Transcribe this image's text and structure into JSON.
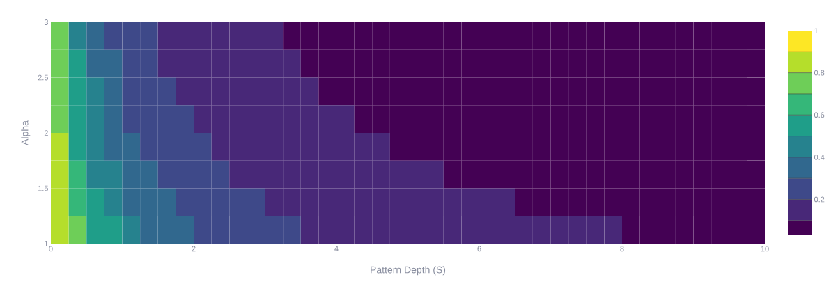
{
  "chart_data": {
    "type": "heatmap",
    "xlabel": "Pattern Depth (S)",
    "ylabel": "Alpha",
    "x": [
      0.125,
      0.375,
      0.625,
      0.875,
      1.125,
      1.375,
      1.625,
      1.875,
      2.125,
      2.375,
      2.625,
      2.875,
      3.125,
      3.375,
      3.625,
      3.875,
      4.125,
      4.375,
      4.625,
      4.875,
      5.125,
      5.375,
      5.625,
      5.875,
      6.125,
      6.375,
      6.625,
      6.875,
      7.125,
      7.375,
      7.625,
      7.875,
      8.125,
      8.375,
      8.625,
      8.875,
      9.125,
      9.375,
      9.625,
      9.875
    ],
    "xlim": [
      0,
      10
    ],
    "ylim": [
      1,
      3
    ],
    "xticks": [
      0,
      2,
      4,
      6,
      8,
      10
    ],
    "yticks": [
      1,
      1.5,
      2,
      2.5,
      3
    ],
    "cells": [
      [
        0.75,
        0.45,
        0.35,
        0.25,
        0.25,
        0.25,
        0.15,
        0.15,
        0.15,
        0.15,
        0.15,
        0.15,
        0.15,
        0.05,
        0.05,
        0.05,
        0.05,
        0.05,
        0.05,
        0.05,
        0.05,
        0.05,
        0.05,
        0.05,
        0.05,
        0.05,
        0.05,
        0.05,
        0.05,
        0.05,
        0.05,
        0.05,
        0.05,
        0.05,
        0.05,
        0.05,
        0.05,
        0.05,
        0.05,
        0.05
      ],
      [
        0.75,
        0.55,
        0.35,
        0.35,
        0.25,
        0.25,
        0.15,
        0.15,
        0.15,
        0.15,
        0.15,
        0.15,
        0.15,
        0.15,
        0.05,
        0.05,
        0.05,
        0.05,
        0.05,
        0.05,
        0.05,
        0.05,
        0.05,
        0.05,
        0.05,
        0.05,
        0.05,
        0.05,
        0.05,
        0.05,
        0.05,
        0.05,
        0.05,
        0.05,
        0.05,
        0.05,
        0.05,
        0.05,
        0.05,
        0.05
      ],
      [
        0.75,
        0.55,
        0.45,
        0.35,
        0.25,
        0.25,
        0.25,
        0.15,
        0.15,
        0.15,
        0.15,
        0.15,
        0.15,
        0.15,
        0.15,
        0.05,
        0.05,
        0.05,
        0.05,
        0.05,
        0.05,
        0.05,
        0.05,
        0.05,
        0.05,
        0.05,
        0.05,
        0.05,
        0.05,
        0.05,
        0.05,
        0.05,
        0.05,
        0.05,
        0.05,
        0.05,
        0.05,
        0.05,
        0.05,
        0.05
      ],
      [
        0.75,
        0.55,
        0.45,
        0.35,
        0.25,
        0.25,
        0.25,
        0.25,
        0.15,
        0.15,
        0.15,
        0.15,
        0.15,
        0.15,
        0.15,
        0.15,
        0.15,
        0.05,
        0.05,
        0.05,
        0.05,
        0.05,
        0.05,
        0.05,
        0.05,
        0.05,
        0.05,
        0.05,
        0.05,
        0.05,
        0.05,
        0.05,
        0.05,
        0.05,
        0.05,
        0.05,
        0.05,
        0.05,
        0.05,
        0.05
      ],
      [
        0.85,
        0.55,
        0.45,
        0.35,
        0.35,
        0.25,
        0.25,
        0.25,
        0.25,
        0.15,
        0.15,
        0.15,
        0.15,
        0.15,
        0.15,
        0.15,
        0.15,
        0.15,
        0.15,
        0.05,
        0.05,
        0.05,
        0.05,
        0.05,
        0.05,
        0.05,
        0.05,
        0.05,
        0.05,
        0.05,
        0.05,
        0.05,
        0.05,
        0.05,
        0.05,
        0.05,
        0.05,
        0.05,
        0.05,
        0.05
      ],
      [
        0.85,
        0.65,
        0.45,
        0.45,
        0.35,
        0.35,
        0.25,
        0.25,
        0.25,
        0.25,
        0.15,
        0.15,
        0.15,
        0.15,
        0.15,
        0.15,
        0.15,
        0.15,
        0.15,
        0.15,
        0.15,
        0.15,
        0.05,
        0.05,
        0.05,
        0.05,
        0.05,
        0.05,
        0.05,
        0.05,
        0.05,
        0.05,
        0.05,
        0.05,
        0.05,
        0.05,
        0.05,
        0.05,
        0.05,
        0.05
      ],
      [
        0.85,
        0.65,
        0.55,
        0.45,
        0.35,
        0.35,
        0.35,
        0.25,
        0.25,
        0.25,
        0.25,
        0.25,
        0.15,
        0.15,
        0.15,
        0.15,
        0.15,
        0.15,
        0.15,
        0.15,
        0.15,
        0.15,
        0.15,
        0.15,
        0.15,
        0.15,
        0.05,
        0.05,
        0.05,
        0.05,
        0.05,
        0.05,
        0.05,
        0.05,
        0.05,
        0.05,
        0.05,
        0.05,
        0.05,
        0.05
      ],
      [
        0.85,
        0.75,
        0.55,
        0.55,
        0.45,
        0.35,
        0.35,
        0.35,
        0.25,
        0.25,
        0.25,
        0.25,
        0.25,
        0.25,
        0.15,
        0.15,
        0.15,
        0.15,
        0.15,
        0.15,
        0.15,
        0.15,
        0.15,
        0.15,
        0.15,
        0.15,
        0.15,
        0.15,
        0.15,
        0.15,
        0.15,
        0.15,
        0.05,
        0.05,
        0.05,
        0.05,
        0.05,
        0.05,
        0.05,
        0.05
      ]
    ],
    "clim": [
      0.03,
      1
    ],
    "cticks": [
      0.2,
      0.4,
      0.6,
      0.8,
      1
    ]
  }
}
